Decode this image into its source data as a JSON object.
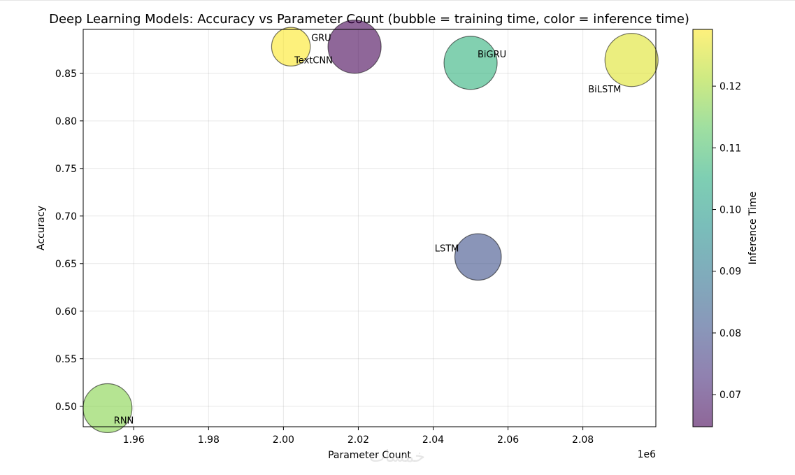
{
  "chart_data": {
    "type": "scatter",
    "title": "Deep Learning Models: Accuracy vs Parameter Count (bubble = training time, color = inference time)",
    "xlabel": "Parameter Count",
    "ylabel": "Accuracy",
    "x_offset_label": "1e6",
    "xlim": [
      1.9465,
      2.0995
    ],
    "ylim": [
      0.4785,
      0.8962
    ],
    "x_ticks": [
      {
        "value": 1.96,
        "label": "1.96"
      },
      {
        "value": 1.98,
        "label": "1.98"
      },
      {
        "value": 2.0,
        "label": "2.00"
      },
      {
        "value": 2.02,
        "label": "2.02"
      },
      {
        "value": 2.04,
        "label": "2.04"
      },
      {
        "value": 2.06,
        "label": "2.06"
      },
      {
        "value": 2.08,
        "label": "2.08"
      }
    ],
    "y_ticks": [
      {
        "value": 0.5,
        "label": "0.50"
      },
      {
        "value": 0.55,
        "label": "0.55"
      },
      {
        "value": 0.6,
        "label": "0.60"
      },
      {
        "value": 0.65,
        "label": "0.65"
      },
      {
        "value": 0.7,
        "label": "0.70"
      },
      {
        "value": 0.75,
        "label": "0.75"
      },
      {
        "value": 0.8,
        "label": "0.80"
      },
      {
        "value": 0.85,
        "label": "0.85"
      }
    ],
    "grid": true,
    "bubble_size_meaning": "training time",
    "color_meaning": "inference time",
    "points": [
      {
        "name": "GRU",
        "x": 2.002,
        "y": 0.878,
        "inference_time": 0.129,
        "bubble_relative": 0.45
      },
      {
        "name": "TextCNN",
        "x": 2.019,
        "y": 0.878,
        "inference_time": 0.065,
        "bubble_relative": 0.85
      },
      {
        "name": "BiGRU",
        "x": 2.05,
        "y": 0.861,
        "inference_time": 0.106,
        "bubble_relative": 0.85
      },
      {
        "name": "BiLSTM",
        "x": 2.093,
        "y": 0.864,
        "inference_time": 0.126,
        "bubble_relative": 0.85
      },
      {
        "name": "LSTM",
        "x": 2.052,
        "y": 0.657,
        "inference_time": 0.08,
        "bubble_relative": 0.65
      },
      {
        "name": "RNN",
        "x": 1.953,
        "y": 0.498,
        "inference_time": 0.117,
        "bubble_relative": 0.72
      }
    ],
    "colorbar": {
      "label": "Inference Time",
      "colormap": "viridis",
      "range": [
        0.0648,
        0.1292
      ],
      "ticks": [
        {
          "value": 0.07,
          "label": "0.07"
        },
        {
          "value": 0.08,
          "label": "0.08"
        },
        {
          "value": 0.09,
          "label": "0.09"
        },
        {
          "value": 0.1,
          "label": "0.10"
        },
        {
          "value": 0.11,
          "label": "0.11"
        },
        {
          "value": 0.12,
          "label": "0.12"
        }
      ]
    }
  },
  "watermark": {
    "text": "خمسات"
  }
}
